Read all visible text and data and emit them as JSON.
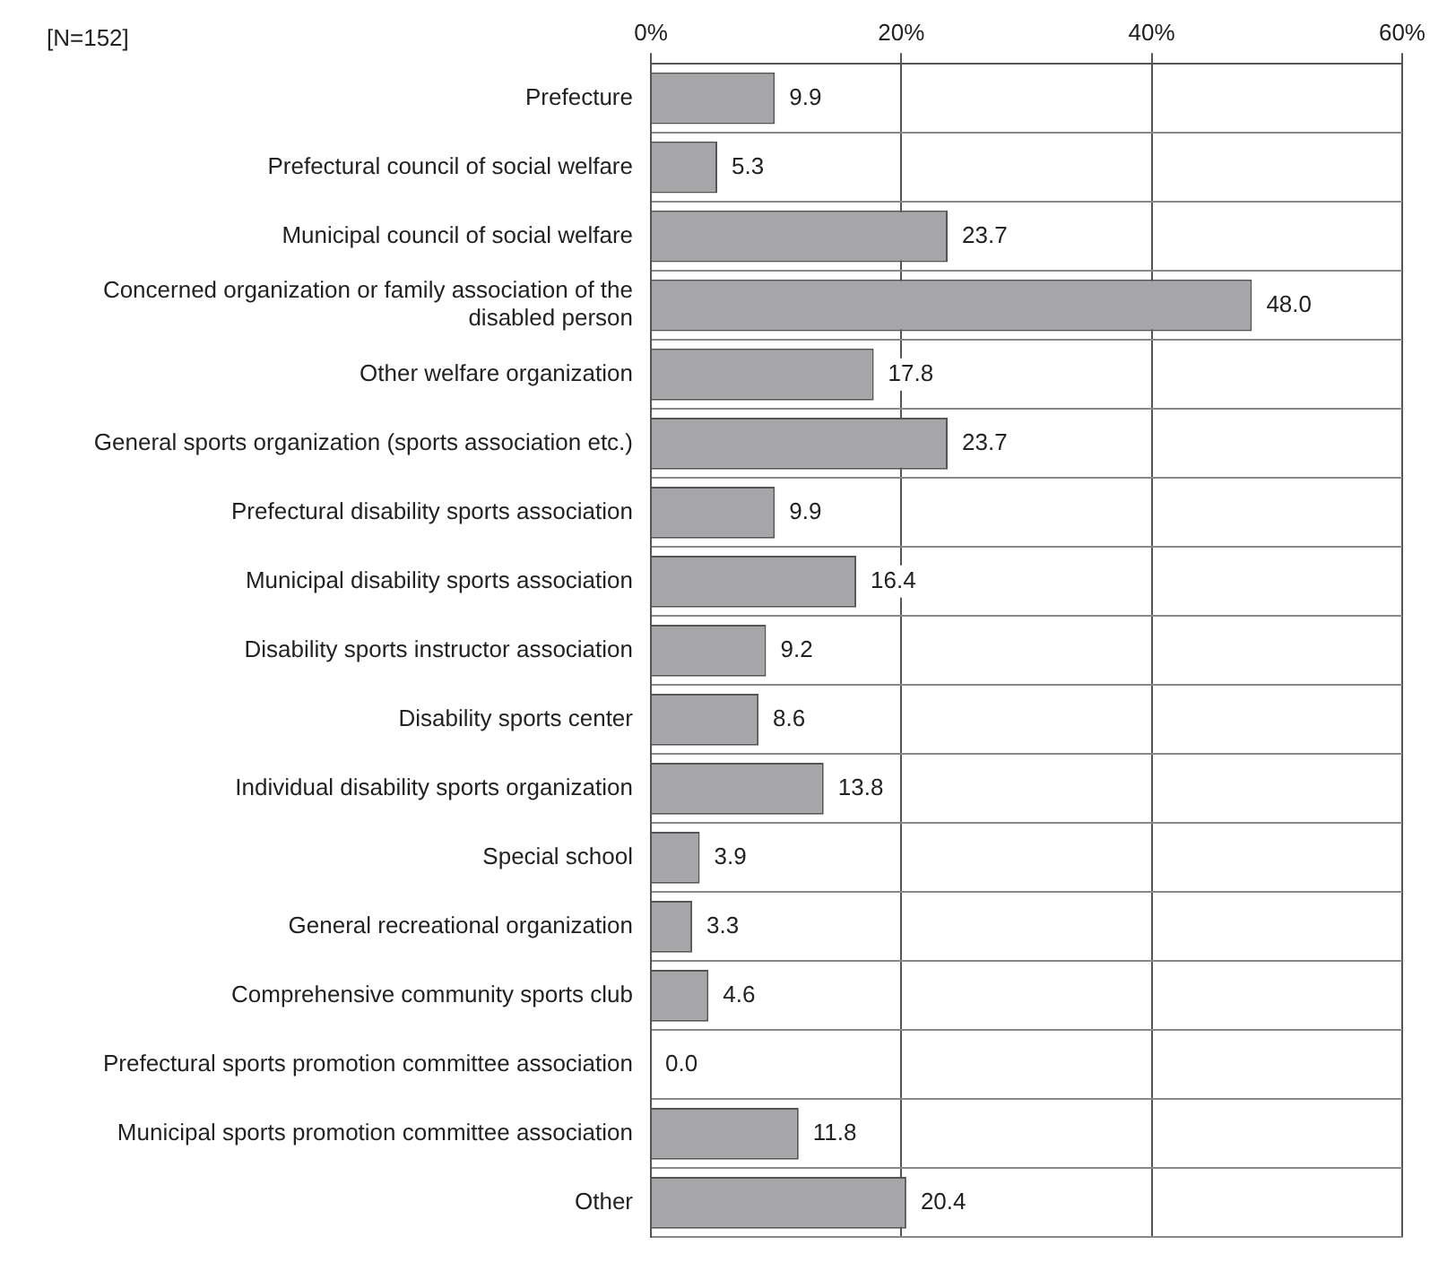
{
  "chart_data": {
    "type": "bar",
    "orientation": "horizontal",
    "categories": [
      "Prefecture",
      "Prefectural council of social welfare",
      "Municipal council of social welfare",
      "Concerned organization or family association of the disabled person",
      "Other welfare organization",
      "General sports organization (sports association etc.)",
      "Prefectural disability sports association",
      "Municipal disability sports association",
      "Disability sports instructor association",
      "Disability sports center",
      "Individual disability sports organization",
      "Special school",
      "General recreational organization",
      "Comprehensive community sports club",
      "Prefectural sports promotion committee association",
      "Municipal sports promotion committee association",
      "Other"
    ],
    "values": [
      9.9,
      5.3,
      23.7,
      48.0,
      17.8,
      23.7,
      9.9,
      16.4,
      9.2,
      8.6,
      13.8,
      3.9,
      3.3,
      4.6,
      0.0,
      11.8,
      20.4
    ],
    "color": "#a6a6a8",
    "xlim": [
      0,
      60
    ],
    "xticks": [
      {
        "value": 0,
        "label": "0%"
      },
      {
        "value": 20,
        "label": "20%"
      },
      {
        "value": 40,
        "label": "40%"
      },
      {
        "value": 60,
        "label": "60%"
      }
    ],
    "value_labels": [
      "9.9",
      "5.3",
      "23.7",
      "48.0",
      "17.8",
      "23.7",
      "9.9",
      "16.4",
      "9.2",
      "8.6",
      "13.8",
      "3.9",
      "3.3",
      "4.6",
      "0.0",
      "11.8",
      "20.4"
    ],
    "grid": true,
    "legend": false,
    "annotations": [
      "[N=152]"
    ]
  }
}
